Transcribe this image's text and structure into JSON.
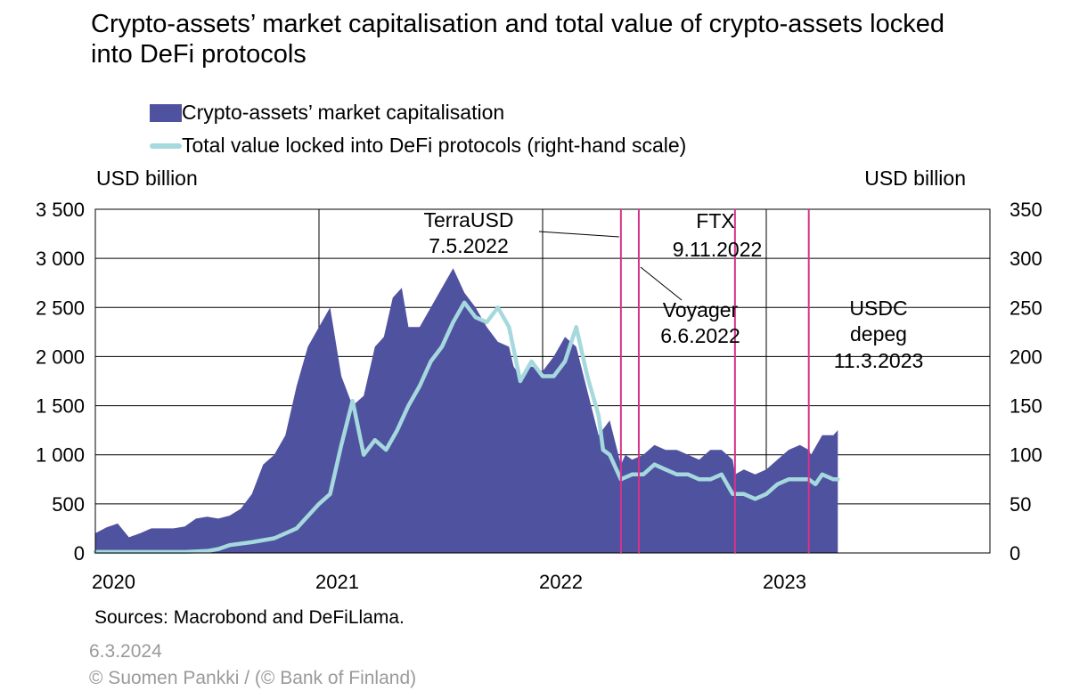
{
  "chart_data": {
    "type": "area",
    "title": "Crypto-assets’ market capitalisation and total value of crypto-assets locked into DeFi protocols",
    "ylabel_left": "USD billion",
    "ylabel_right": "USD billion",
    "ylim_left": [
      0,
      3500
    ],
    "ylim_right": [
      0,
      350
    ],
    "xlim": [
      2020.0,
      2024.0
    ],
    "yticks_left": [
      "3 500",
      "3 000",
      "2 500",
      "2 000",
      "1 500",
      "1 000",
      "500",
      "0"
    ],
    "yticks_right": [
      "350",
      "300",
      "250",
      "200",
      "150",
      "100",
      "50",
      "0"
    ],
    "xticks": [
      "2020",
      "2021",
      "2022",
      "2023"
    ],
    "series": [
      {
        "name": "Crypto-assets’ market capitalisation",
        "axis": "left",
        "color": "#4f529f",
        "x": [
          2020.0,
          2020.05,
          2020.1,
          2020.15,
          2020.2,
          2020.25,
          2020.3,
          2020.35,
          2020.4,
          2020.45,
          2020.5,
          2020.55,
          2020.6,
          2020.65,
          2020.7,
          2020.75,
          2020.8,
          2020.85,
          2020.9,
          2020.95,
          2021.0,
          2021.05,
          2021.1,
          2021.15,
          2021.2,
          2021.25,
          2021.29,
          2021.33,
          2021.37,
          2021.4,
          2021.45,
          2021.5,
          2021.55,
          2021.6,
          2021.65,
          2021.7,
          2021.75,
          2021.8,
          2021.85,
          2021.87,
          2021.9,
          2021.95,
          2022.0,
          2022.05,
          2022.1,
          2022.15,
          2022.2,
          2022.25,
          2022.3,
          2022.35,
          2022.37,
          2022.4,
          2022.45,
          2022.5,
          2022.55,
          2022.6,
          2022.65,
          2022.7,
          2022.75,
          2022.8,
          2022.85,
          2022.86,
          2022.9,
          2022.95,
          2023.0,
          2023.05,
          2023.1,
          2023.15,
          2023.19,
          2023.2,
          2023.25,
          2023.3,
          2023.32
        ],
        "values": [
          200,
          260,
          300,
          160,
          200,
          250,
          250,
          250,
          270,
          350,
          370,
          350,
          380,
          450,
          600,
          900,
          1000,
          1200,
          1700,
          2100,
          2300,
          2500,
          1800,
          1500,
          1600,
          2100,
          2200,
          2600,
          2700,
          2300,
          2300,
          2500,
          2700,
          2900,
          2650,
          2500,
          2300,
          2150,
          2100,
          1900,
          1800,
          1900,
          1850,
          2000,
          2200,
          2100,
          1650,
          1200,
          1350,
          900,
          1000,
          950,
          1000,
          1100,
          1050,
          1050,
          1000,
          950,
          1050,
          1050,
          950,
          800,
          850,
          800,
          850,
          950,
          1050,
          1100,
          1050,
          1000,
          1200,
          1200,
          1250
        ]
      },
      {
        "name": "Total value locked into DeFi protocols (right-hand scale)",
        "axis": "right",
        "color": "#a5d9de",
        "x": [
          2020.0,
          2020.1,
          2020.2,
          2020.3,
          2020.4,
          2020.5,
          2020.55,
          2020.6,
          2020.7,
          2020.8,
          2020.9,
          2021.0,
          2021.05,
          2021.1,
          2021.15,
          2021.2,
          2021.25,
          2021.3,
          2021.35,
          2021.4,
          2021.45,
          2021.5,
          2021.55,
          2021.6,
          2021.65,
          2021.7,
          2021.75,
          2021.8,
          2021.85,
          2021.9,
          2021.95,
          2022.0,
          2022.05,
          2022.1,
          2022.15,
          2022.2,
          2022.25,
          2022.27,
          2022.3,
          2022.35,
          2022.4,
          2022.45,
          2022.5,
          2022.55,
          2022.6,
          2022.65,
          2022.7,
          2022.75,
          2022.8,
          2022.85,
          2022.9,
          2022.95,
          2023.0,
          2023.05,
          2023.1,
          2023.15,
          2023.19,
          2023.22,
          2023.25,
          2023.3,
          2023.32
        ],
        "values": [
          1,
          1,
          1,
          1,
          1,
          2,
          4,
          8,
          11,
          15,
          25,
          50,
          60,
          110,
          155,
          100,
          115,
          105,
          125,
          150,
          170,
          195,
          210,
          235,
          255,
          240,
          235,
          250,
          230,
          175,
          195,
          180,
          180,
          195,
          230,
          180,
          140,
          105,
          100,
          75,
          80,
          80,
          90,
          85,
          80,
          80,
          75,
          75,
          80,
          60,
          60,
          55,
          60,
          70,
          75,
          75,
          75,
          70,
          80,
          75,
          75
        ]
      }
    ],
    "events": [
      {
        "x": 2022.35,
        "label1": "TerraUSD",
        "label2": "7.5.2022"
      },
      {
        "x": 2022.43,
        "label1": "Voyager",
        "label2": "6.6.2022"
      },
      {
        "x": 2022.86,
        "label1": "FTX",
        "label2": "9.11.2022"
      },
      {
        "x": 2023.19,
        "label1": "USDC",
        "label2": "depeg",
        "label3": "11.3.2023"
      }
    ],
    "colors": {
      "area": "#4f529f",
      "line": "#a5d9de",
      "event": "#d6338a"
    }
  },
  "legend": {
    "area_label": "Crypto-assets’ market capitalisation",
    "line_label": "Total value locked into DeFi protocols (right-hand scale)"
  },
  "footer": {
    "sources": "Sources: Macrobond and DeFiLlama.",
    "date": "6.3.2024",
    "copyright": "© Suomen Pankki / (© Bank of Finland)"
  }
}
